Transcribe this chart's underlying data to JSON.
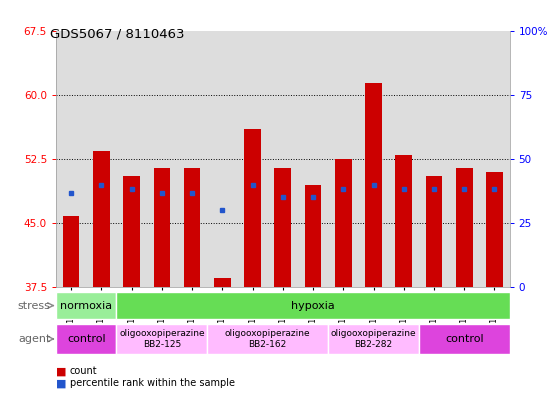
{
  "title": "GDS5067 / 8110463",
  "samples": [
    "GSM1169207",
    "GSM1169208",
    "GSM1169209",
    "GSM1169213",
    "GSM1169214",
    "GSM1169215",
    "GSM1169216",
    "GSM1169217",
    "GSM1169218",
    "GSM1169219",
    "GSM1169220",
    "GSM1169221",
    "GSM1169210",
    "GSM1169211",
    "GSM1169212"
  ],
  "count_values": [
    45.8,
    53.5,
    50.5,
    51.5,
    51.5,
    38.5,
    56.0,
    51.5,
    49.5,
    52.5,
    61.5,
    53.0,
    50.5,
    51.5,
    51.0
  ],
  "blue_dot_y": [
    48.5,
    49.5,
    49.0,
    48.5,
    48.5,
    46.5,
    49.5,
    48.0,
    48.0,
    49.0,
    49.5,
    49.0,
    49.0,
    49.0,
    49.0
  ],
  "y_min": 37.5,
  "y_max": 67.5,
  "y_ticks_left": [
    37.5,
    45.0,
    52.5,
    60.0,
    67.5
  ],
  "y_ticks_right": [
    0,
    25,
    50,
    75,
    100
  ],
  "bar_color": "#cc0000",
  "dot_color": "#2255cc",
  "bar_bottom": 37.5,
  "stress_groups": [
    {
      "label": "normoxia",
      "start": 0,
      "end": 2,
      "color": "#99ee99"
    },
    {
      "label": "hypoxia",
      "start": 2,
      "end": 15,
      "color": "#66dd55"
    }
  ],
  "agent_groups": [
    {
      "label": "control",
      "start": 0,
      "end": 2,
      "color": "#dd44dd",
      "fontsize": 8
    },
    {
      "label": "oligooxopiperazine\nBB2-125",
      "start": 2,
      "end": 5,
      "color": "#ffbbff",
      "fontsize": 6.5
    },
    {
      "label": "oligooxopiperazine\nBB2-162",
      "start": 5,
      "end": 9,
      "color": "#ffbbff",
      "fontsize": 6.5
    },
    {
      "label": "oligooxopiperazine\nBB2-282",
      "start": 9,
      "end": 12,
      "color": "#ffbbff",
      "fontsize": 6.5
    },
    {
      "label": "control",
      "start": 12,
      "end": 15,
      "color": "#dd44dd",
      "fontsize": 8
    }
  ],
  "grid_yticks": [
    45.0,
    52.5,
    60.0
  ],
  "plot_bg_color": "#dddddd",
  "fig_bg_color": "#ffffff",
  "n_samples": 15
}
